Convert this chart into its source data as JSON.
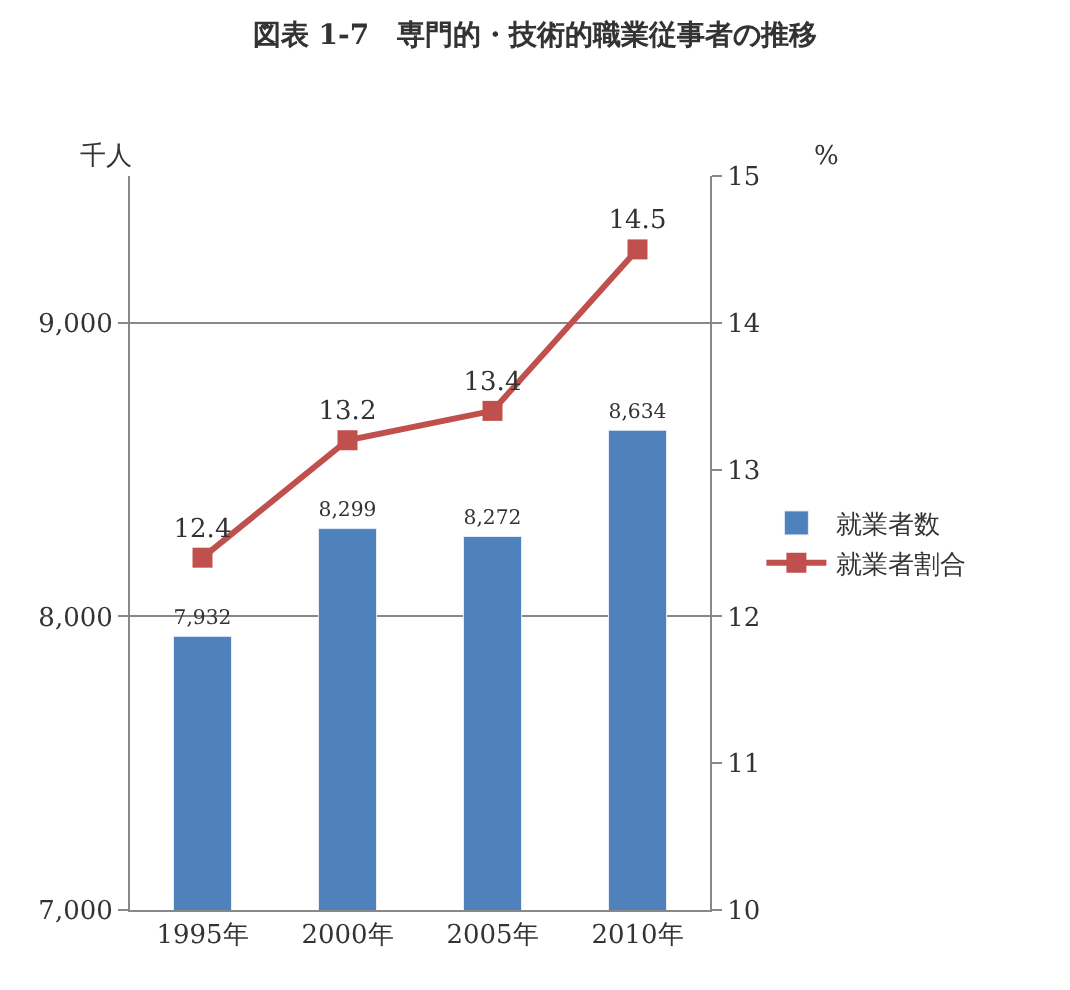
{
  "chart_data": {
    "type": "bar",
    "title": "図表 1-7　専門的・技術的職業従事者の推移",
    "categories": [
      "1995年",
      "2000年",
      "2005年",
      "2010年"
    ],
    "series": [
      {
        "name": "就業者数",
        "color": "#4f81bd",
        "values": [
          7932,
          8299,
          8272,
          8634
        ],
        "value_labels": [
          "7,932",
          "8,299",
          "8,272",
          "8,634"
        ]
      },
      {
        "name": "就業者割合",
        "type": "line",
        "axis": "y2",
        "color": "#c0504d",
        "marker": "square",
        "values": [
          12.4,
          13.2,
          13.4,
          14.5
        ],
        "value_labels": [
          "12.4",
          "13.2",
          "13.4",
          "14.5"
        ]
      }
    ],
    "ylabel": "千人",
    "y2label": "%",
    "ylim": [
      7000,
      9500
    ],
    "yticks": [
      {
        "value": 7000,
        "label": "7,000"
      },
      {
        "value": 8000,
        "label": "8,000"
      },
      {
        "value": 9000,
        "label": "9,000"
      }
    ],
    "y2lim": [
      10,
      15
    ],
    "y2ticks": [
      10,
      11,
      12,
      13,
      14,
      15
    ],
    "grid": "y",
    "legend": "right"
  }
}
